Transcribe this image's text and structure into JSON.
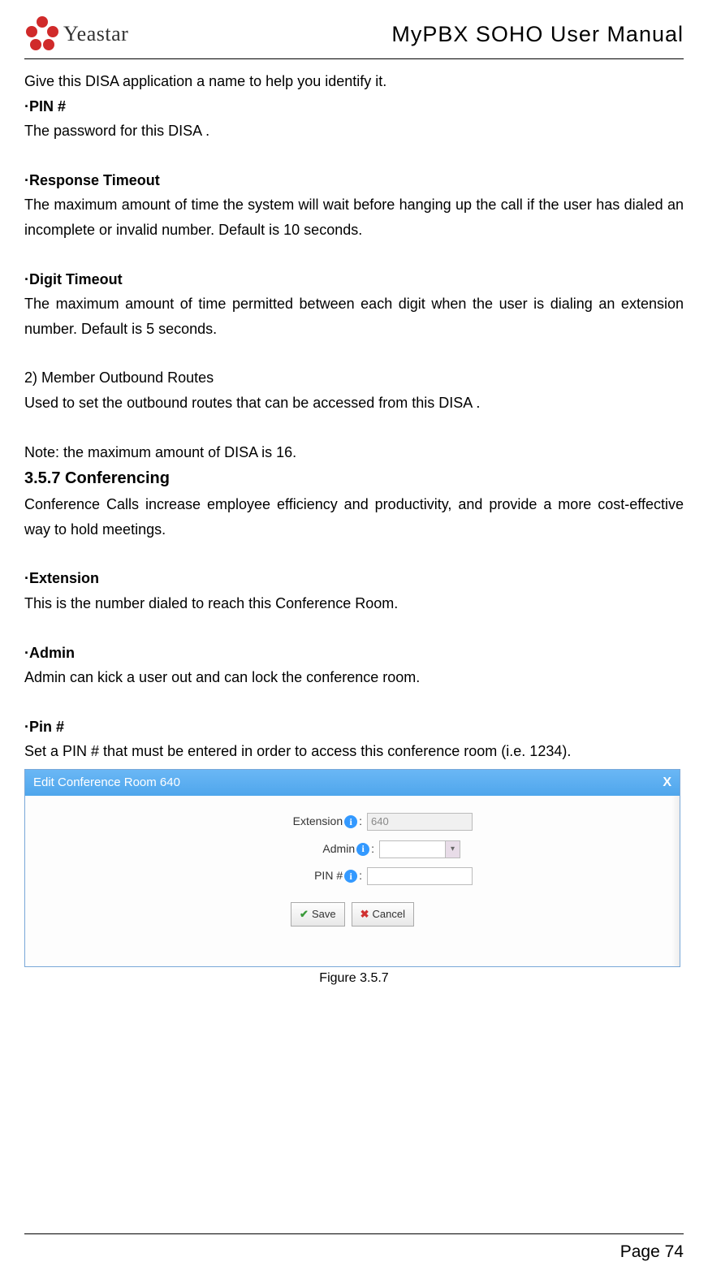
{
  "header": {
    "logo_text": "Yeastar",
    "title": "MyPBX SOHO User Manual",
    "logo_petal_color": "#d02a2a"
  },
  "body": {
    "disa_name_desc": "Give this DISA application a name to help you identify it.",
    "pin_heading": "·PIN #",
    "pin_desc": "The password for this DISA .",
    "response_timeout_heading": "·Response Timeout",
    "response_timeout_desc": "The maximum amount of time the system will wait before hanging up the call if the user has dialed an incomplete or invalid number. Default is 10 seconds.",
    "digit_timeout_heading": "·Digit Timeout",
    "digit_timeout_desc": "The maximum amount of time permitted between each digit when the user is dialing an extension number. Default is 5 seconds.",
    "outbound_heading": "2) Member Outbound Routes",
    "outbound_desc": "Used to set the outbound routes that can be accessed from this DISA .",
    "note": "Note: the maximum amount of DISA is 16.",
    "section_heading": "3.5.7 Conferencing",
    "conf_intro": "Conference Calls increase employee efficiency and productivity, and provide a more cost-effective way to hold meetings.",
    "extension_heading": "·Extension",
    "extension_desc": "This is the number dialed to reach this Conference Room.",
    "admin_heading": "·Admin",
    "admin_desc": "Admin can kick a user out and can lock the conference room.",
    "pin2_heading": "·Pin #",
    "pin2_desc": "Set a PIN # that must be entered in order to access this conference room (i.e. 1234)."
  },
  "dialog": {
    "title": "Edit Conference Room 640",
    "close": "X",
    "labels": {
      "extension": "Extension",
      "admin": "Admin",
      "pin": "PIN #"
    },
    "values": {
      "extension": "640"
    },
    "buttons": {
      "save": "Save",
      "cancel": "Cancel"
    },
    "titlebar_color": "#4fa6ec"
  },
  "figure_caption": "Figure 3.5.7",
  "footer": {
    "page": "Page 74"
  }
}
